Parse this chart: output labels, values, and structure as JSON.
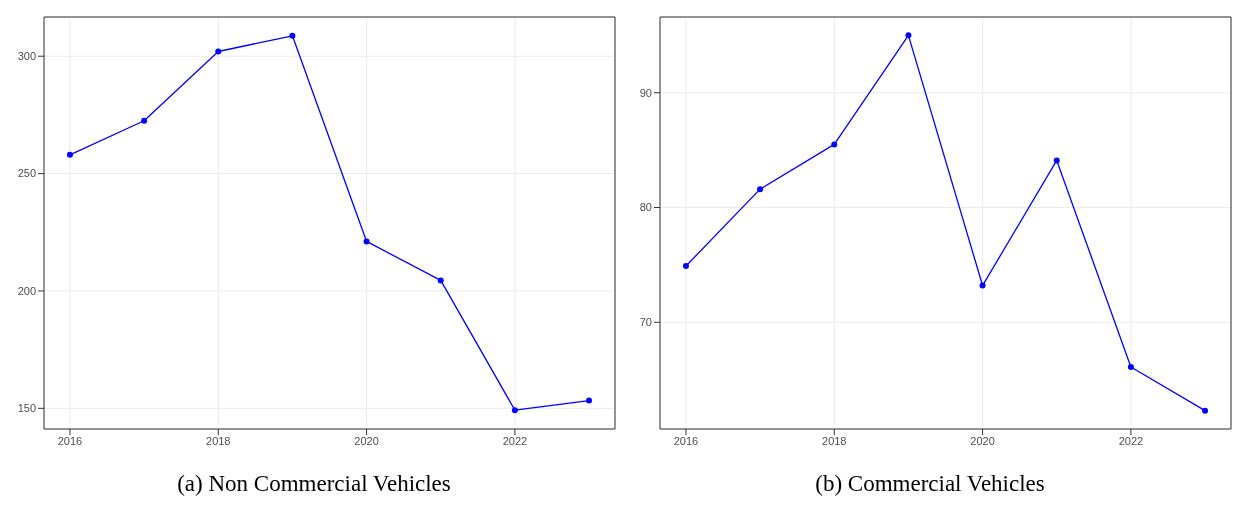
{
  "chart_data": [
    {
      "type": "line",
      "title": "(a) Non Commercial Vehicles",
      "x": [
        2016,
        2017,
        2018,
        2019,
        2020,
        2021,
        2022,
        2023
      ],
      "series": [
        {
          "color": "#0000ff",
          "values": [
            258,
            272.5,
            302,
            308.7,
            221.1,
            204.5,
            149.2,
            153.3
          ]
        }
      ],
      "xlim": [
        2015.65,
        2023.35
      ],
      "xticks": [
        2016,
        2018,
        2020,
        2022
      ],
      "ylim": [
        141.2,
        316.7
      ],
      "yticks": [
        150,
        200,
        250,
        300
      ],
      "grid": true,
      "marker": "circle",
      "line_style": "solid",
      "legend": false
    },
    {
      "type": "line",
      "title": "(b) Commercial Vehicles",
      "x": [
        2016,
        2017,
        2018,
        2019,
        2020,
        2021,
        2022,
        2023
      ],
      "series": [
        {
          "color": "#0000ff",
          "values": [
            74.9,
            81.6,
            85.5,
            95,
            73.2,
            84.1,
            66.1,
            62.3
          ]
        }
      ],
      "xlim": [
        2015.65,
        2023.35
      ],
      "xticks": [
        2016,
        2018,
        2020,
        2022
      ],
      "ylim": [
        60.7,
        96.6
      ],
      "yticks": [
        70,
        80,
        90
      ],
      "grid": true,
      "marker": "circle",
      "line_style": "solid",
      "legend": false
    }
  ]
}
